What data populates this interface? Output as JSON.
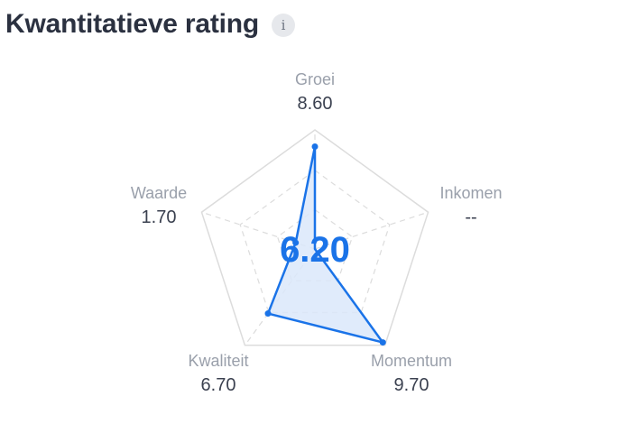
{
  "header": {
    "title": "Kwantitatieve rating",
    "info_icon": "info-icon",
    "info_label": "i"
  },
  "chart_data": {
    "type": "radar",
    "title": "Kwantitatieve rating",
    "center_score": "6.20",
    "scale_max": 10,
    "grid": true,
    "axes": [
      {
        "name": "Groei",
        "value": 8.6,
        "label": "8.60"
      },
      {
        "name": "Inkomen",
        "value": null,
        "label": "--"
      },
      {
        "name": "Momentum",
        "value": 9.7,
        "label": "9.70"
      },
      {
        "name": "Kwaliteit",
        "value": 6.7,
        "label": "6.70"
      },
      {
        "name": "Waarde",
        "value": 1.7,
        "label": "1.70"
      }
    ],
    "colors": {
      "line": "#1a73e8",
      "fill": "#dbe8fa",
      "grid": "#dcdcdc",
      "center_text": "#1a73e8"
    }
  }
}
